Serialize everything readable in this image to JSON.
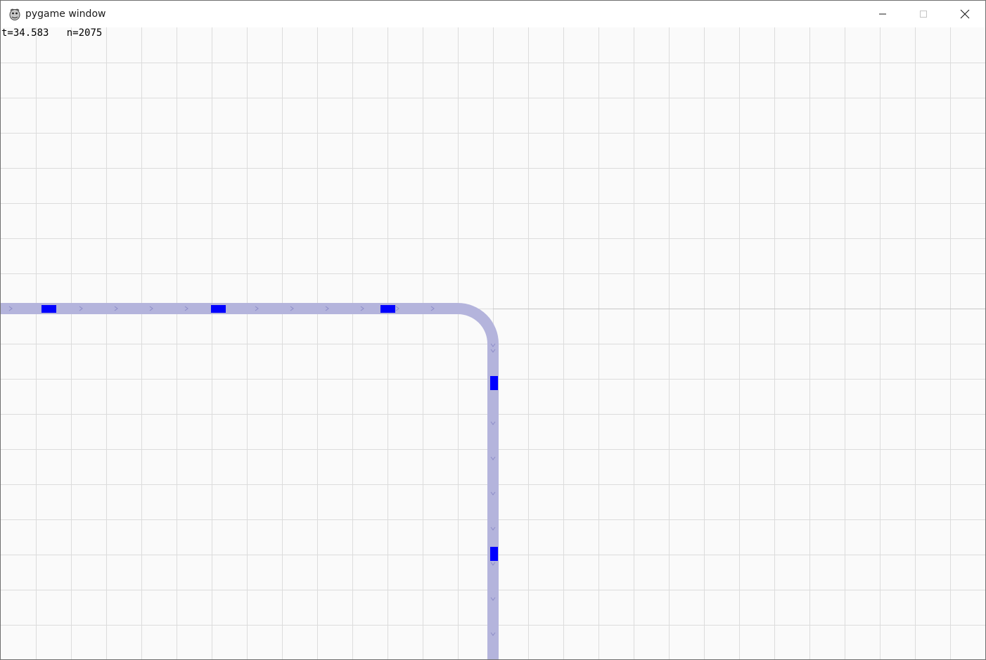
{
  "window": {
    "title": "pygame window",
    "icon": "pygame-snake-icon",
    "controls": {
      "minimize_icon": "minimize-icon",
      "maximize_icon": "maximize-icon",
      "close_icon": "close-icon"
    }
  },
  "hud": {
    "time_text": "t=34.583",
    "count_text": "n=2075"
  },
  "colors": {
    "background": "#fafafa",
    "grid": "#dcdcdc",
    "track": "#b4b4dc",
    "arrow": "#8c8cc8",
    "vehicle": "#0000ff"
  }
}
